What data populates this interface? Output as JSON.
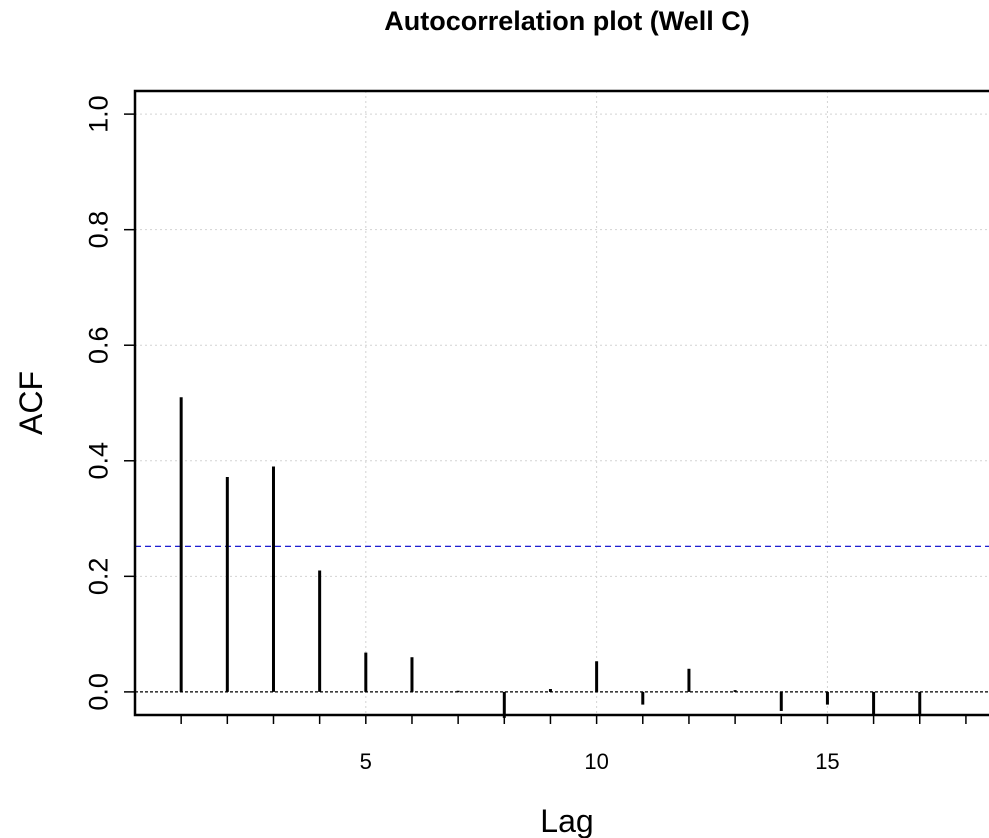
{
  "chart_data": {
    "type": "bar",
    "title": "Autocorrelation plot (Well C)",
    "xlabel": "Lag",
    "ylabel": "ACF",
    "x": [
      1,
      2,
      3,
      4,
      5,
      6,
      7,
      8,
      9,
      10,
      11,
      12,
      13,
      14,
      15,
      16,
      17
    ],
    "values": [
      0.51,
      0.372,
      0.39,
      0.21,
      0.068,
      0.06,
      0.002,
      -0.045,
      0.005,
      0.053,
      -0.022,
      0.04,
      0.003,
      -0.033,
      -0.022,
      -0.04,
      -0.04
    ],
    "xlim": [
      0.0,
      18.5
    ],
    "ylim": [
      -0.04,
      1.04
    ],
    "xticks": [
      5,
      10,
      15
    ],
    "xtick_labels": [
      "5",
      "10",
      "15"
    ],
    "yticks": [
      0.0,
      0.2,
      0.4,
      0.6,
      0.8,
      1.0
    ],
    "ytick_labels": [
      "0.0",
      "0.2",
      "0.4",
      "0.6",
      "0.8",
      "1.0"
    ],
    "confidence_bound": 0.252,
    "confidence_color": "#0000cc",
    "grid": true,
    "grid_color": "#d3d3d3",
    "zero_line": true
  }
}
